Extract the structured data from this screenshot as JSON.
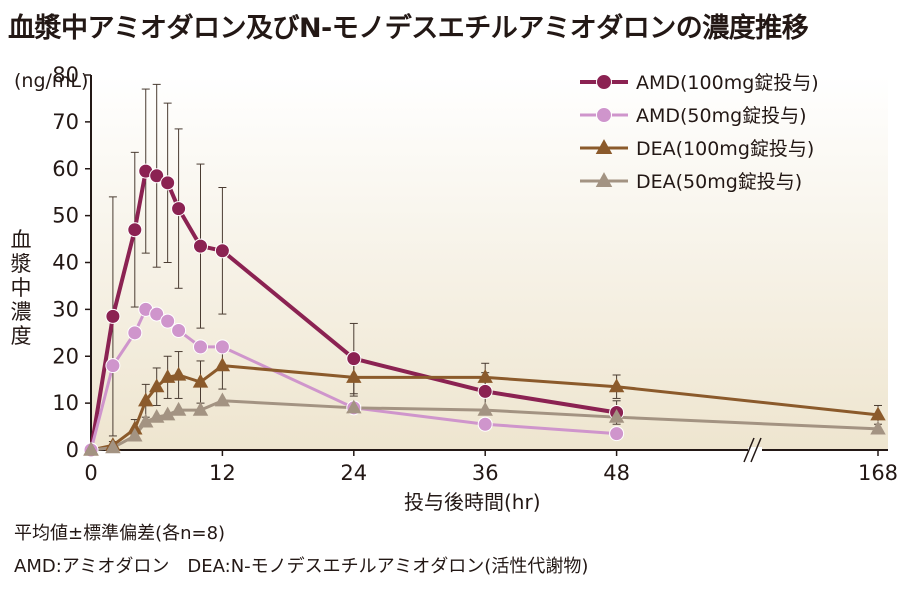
{
  "title": "血漿中アミオダロン及びN-モノデスエチルアミオダロンの濃度推移",
  "notes": {
    "line1": "平均値±標準偏差(各n=8)",
    "line2": "AMD:アミオダロン　DEA:N-モノデスエチルアミオダロン(活性代謝物)"
  },
  "chart_data": {
    "type": "line",
    "title": "血漿中アミオダロン及びN-モノデスエチルアミオダロンの濃度推移",
    "ylabel": "血漿中濃度",
    "yunit": "(ng/mL)",
    "xlabel": "投与後時間(hr)",
    "ylim": [
      0,
      80
    ],
    "yticks": [
      0,
      10,
      20,
      30,
      40,
      50,
      60,
      70,
      80
    ],
    "xticks": [
      0,
      12,
      24,
      36,
      48,
      168
    ],
    "x_axis_break": "between 48 and 168",
    "legend_position": "top-right",
    "series": [
      {
        "name": "AMD(100mg錠投与)",
        "color": "#8b2252",
        "marker": "circle",
        "points": [
          {
            "x": 0,
            "y": 0,
            "sd": 0
          },
          {
            "x": 2,
            "y": 28.5,
            "sd": 25.5
          },
          {
            "x": 4,
            "y": 47,
            "sd": 16.5
          },
          {
            "x": 5,
            "y": 59.5,
            "sd": 17.5
          },
          {
            "x": 6,
            "y": 58.5,
            "sd": 19.5
          },
          {
            "x": 7,
            "y": 57,
            "sd": 17
          },
          {
            "x": 8,
            "y": 51.5,
            "sd": 17
          },
          {
            "x": 10,
            "y": 43.5,
            "sd": 17.5
          },
          {
            "x": 12,
            "y": 42.5,
            "sd": 13.5
          },
          {
            "x": 24,
            "y": 19.5,
            "sd": 7.5
          },
          {
            "x": 36,
            "y": 12.5,
            "sd": 4
          },
          {
            "x": 48,
            "y": 8,
            "sd": 2.5
          }
        ]
      },
      {
        "name": "AMD(50mg錠投与)",
        "color": "#cf95cc",
        "marker": "circle",
        "points": [
          {
            "x": 0,
            "y": 0,
            "sd": 0
          },
          {
            "x": 2,
            "y": 18,
            "sd": 0
          },
          {
            "x": 4,
            "y": 25,
            "sd": 0
          },
          {
            "x": 5,
            "y": 30,
            "sd": 0
          },
          {
            "x": 6,
            "y": 29,
            "sd": 0
          },
          {
            "x": 7,
            "y": 27.5,
            "sd": 0
          },
          {
            "x": 8,
            "y": 25.5,
            "sd": 0
          },
          {
            "x": 10,
            "y": 22,
            "sd": 0
          },
          {
            "x": 12,
            "y": 22,
            "sd": 0
          },
          {
            "x": 24,
            "y": 9,
            "sd": 0
          },
          {
            "x": 36,
            "y": 5.5,
            "sd": 0
          },
          {
            "x": 48,
            "y": 3.5,
            "sd": 0
          }
        ]
      },
      {
        "name": "DEA(100mg錠投与)",
        "color": "#8b5a2b",
        "marker": "triangle",
        "points": [
          {
            "x": 0,
            "y": 0,
            "sd": 0
          },
          {
            "x": 2,
            "y": 1,
            "sd": 0.8
          },
          {
            "x": 4,
            "y": 4.5,
            "sd": 2
          },
          {
            "x": 5,
            "y": 10.5,
            "sd": 3.5
          },
          {
            "x": 6,
            "y": 13.5,
            "sd": 4
          },
          {
            "x": 7,
            "y": 15.5,
            "sd": 4.5
          },
          {
            "x": 8,
            "y": 16,
            "sd": 5
          },
          {
            "x": 10,
            "y": 14.5,
            "sd": 4.5
          },
          {
            "x": 12,
            "y": 18,
            "sd": 5
          },
          {
            "x": 24,
            "y": 15.5,
            "sd": 4
          },
          {
            "x": 36,
            "y": 15.5,
            "sd": 3
          },
          {
            "x": 48,
            "y": 13.5,
            "sd": 2.5
          },
          {
            "x": 168,
            "y": 7.5,
            "sd": 2
          }
        ]
      },
      {
        "name": "DEA(50mg錠投与)",
        "color": "#a39382",
        "marker": "triangle",
        "points": [
          {
            "x": 0,
            "y": 0,
            "sd": 0
          },
          {
            "x": 2,
            "y": 0.5,
            "sd": 0
          },
          {
            "x": 4,
            "y": 3,
            "sd": 0
          },
          {
            "x": 5,
            "y": 6,
            "sd": 0
          },
          {
            "x": 6,
            "y": 7,
            "sd": 0
          },
          {
            "x": 7,
            "y": 7.5,
            "sd": 0
          },
          {
            "x": 8,
            "y": 8.5,
            "sd": 0
          },
          {
            "x": 10,
            "y": 8.5,
            "sd": 0
          },
          {
            "x": 12,
            "y": 10.5,
            "sd": 0
          },
          {
            "x": 24,
            "y": 9,
            "sd": 0
          },
          {
            "x": 36,
            "y": 8.5,
            "sd": 0
          },
          {
            "x": 48,
            "y": 7,
            "sd": 0
          },
          {
            "x": 168,
            "y": 4.5,
            "sd": 0
          }
        ]
      }
    ]
  }
}
